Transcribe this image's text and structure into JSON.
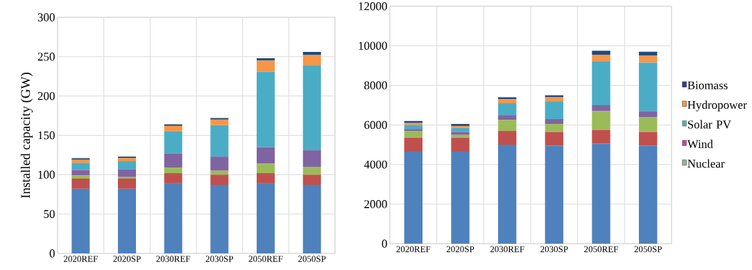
{
  "chart_data": [
    {
      "type": "bar",
      "stacked": true,
      "grid": true,
      "ylabel": "Installed capacity (GW)",
      "categories": [
        "2020REF",
        "2020SP",
        "2030REF",
        "2030SP",
        "2050REF",
        "2050SP"
      ],
      "ylim": [
        0,
        300
      ],
      "yticks": [
        0,
        50,
        100,
        150,
        200,
        250,
        300
      ],
      "series": [
        {
          "color": "#4f81bd",
          "values": [
            82,
            82,
            89,
            87,
            89,
            87
          ]
        },
        {
          "color": "#c0504d",
          "values": [
            13,
            13,
            13,
            13,
            13,
            13
          ]
        },
        {
          "color": "#9bbb59",
          "values": [
            4,
            2,
            7,
            5,
            12,
            10
          ]
        },
        {
          "color": "#8064a2",
          "values": [
            7,
            10,
            18,
            18,
            21,
            21
          ]
        },
        {
          "color": "#4bacc6",
          "values": [
            9,
            10,
            28,
            40,
            96,
            108
          ]
        },
        {
          "color": "#f79646",
          "values": [
            4,
            4,
            7,
            7,
            14,
            13
          ]
        },
        {
          "color": "#1f497d",
          "values": [
            2,
            2,
            2,
            2,
            3,
            4
          ]
        }
      ]
    },
    {
      "type": "bar",
      "stacked": true,
      "grid": true,
      "legend": "right",
      "categories": [
        "2020REF",
        "2020SP",
        "2030REF",
        "2030SP",
        "2050REF",
        "2050SP"
      ],
      "ylim": [
        0,
        12000
      ],
      "yticks": [
        0,
        2000,
        4000,
        6000,
        8000,
        10000,
        12000
      ],
      "series": [
        {
          "color": "#4f81bd",
          "values": [
            4650,
            4650,
            5000,
            4950,
            5050,
            4950
          ]
        },
        {
          "color": "#c0504d",
          "values": [
            700,
            700,
            700,
            700,
            700,
            700
          ]
        },
        {
          "name": "Nuclear",
          "color": "#9bbb59",
          "values": [
            350,
            150,
            550,
            400,
            950,
            750
          ]
        },
        {
          "name": "Wind",
          "color": "#8064a2",
          "values": [
            100,
            150,
            250,
            250,
            300,
            300
          ]
        },
        {
          "name": "Solar PV",
          "color": "#4bacc6",
          "values": [
            200,
            200,
            600,
            900,
            2200,
            2450
          ]
        },
        {
          "name": "Hydropower",
          "color": "#f79646",
          "values": [
            100,
            100,
            200,
            200,
            350,
            350
          ]
        },
        {
          "name": "Biomass",
          "color": "#1f497d",
          "values": [
            100,
            100,
            100,
            100,
            200,
            200
          ]
        }
      ]
    }
  ]
}
